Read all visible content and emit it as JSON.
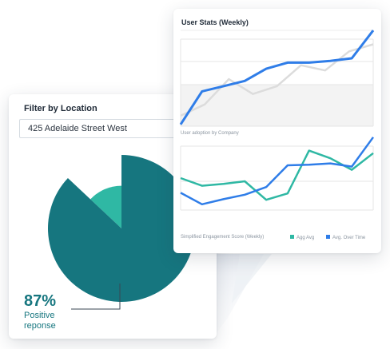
{
  "filter_card": {
    "title": "Filter by Location",
    "location_value": "425 Adelaide Street West",
    "stat_value": "87%",
    "stat_label_line1": "Positive",
    "stat_label_line2": "reponse"
  },
  "stats_card": {
    "title": "User Stats (Weekly)",
    "chart1_caption": "User adoption by Company",
    "chart2_caption": "Simplified Engagement Score (Weekly)",
    "legend": [
      {
        "label": "Agg Avg",
        "color": "#2fb8a4"
      },
      {
        "label": "Avg. Over Time",
        "color": "#2f7de8"
      }
    ]
  },
  "colors": {
    "pie_major": "#16767f",
    "pie_minor": "#2fb8a4",
    "line_blue": "#2f7de8",
    "line_teal": "#2fb8a4",
    "line_gray": "#dcdcdc"
  },
  "chart_data": [
    {
      "type": "pie",
      "title": "",
      "slices": [
        {
          "value": 87,
          "color": "#16767f"
        },
        {
          "value": 13,
          "color": "#2fb8a4"
        }
      ]
    },
    {
      "type": "line",
      "title": "",
      "caption": "User adoption by Company",
      "ylim": [
        0,
        100
      ],
      "series": [
        {
          "color": "#dcdcdc",
          "values": [
            12,
            25,
            54,
            37,
            46,
            70,
            64,
            86,
            94
          ]
        },
        {
          "color": "#2f7de8",
          "values": [
            2,
            40,
            46,
            52,
            66,
            73,
            73,
            75,
            78,
            110
          ]
        }
      ]
    },
    {
      "type": "line",
      "title": "",
      "caption": "Simplified Engagement Score (Weekly)",
      "ylim": [
        0,
        100
      ],
      "series": [
        {
          "name": "Agg Avg",
          "color": "#2fb8a4",
          "values": [
            50,
            38,
            41,
            45,
            16,
            26,
            93,
            81,
            63,
            89
          ]
        },
        {
          "name": "Avg. Over Time",
          "color": "#2f7de8",
          "values": [
            27,
            9,
            17,
            24,
            36,
            70,
            71,
            73,
            68,
            114
          ]
        }
      ]
    }
  ]
}
